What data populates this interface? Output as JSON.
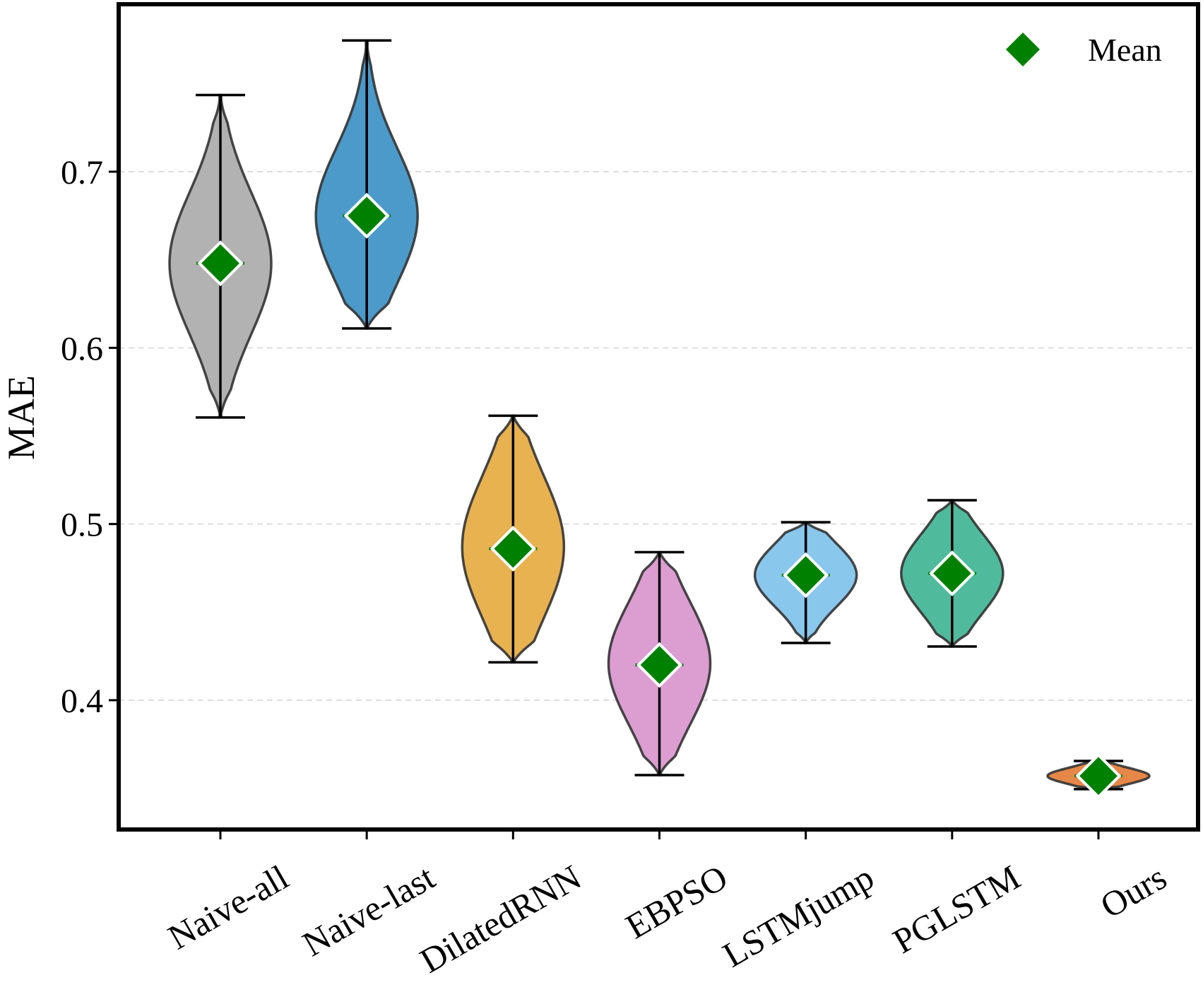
{
  "chart_data": {
    "type": "violin",
    "title": "",
    "xlabel": "",
    "ylabel": "MAE",
    "ylim": [
      0.335,
      0.79
    ],
    "yticks": [
      "0.4",
      "0.5",
      "0.6",
      "0.7"
    ],
    "ytick_values": [
      0.4,
      0.5,
      0.6,
      0.7
    ],
    "grid": "horizontal dashed",
    "legend": {
      "label": "Mean",
      "marker": "green-diamond",
      "placement": "top-right"
    },
    "categories": [
      "Naive-all",
      "Naive-last",
      "DilatedRNN",
      "EBPSO",
      "LSTMjump",
      "PGLSTM",
      "Ours"
    ],
    "series": [
      {
        "name": "Naive-all",
        "color": "#b2b2b2",
        "min": 0.5605,
        "max": 0.7435,
        "mean": 0.648,
        "peak": 0.648,
        "spread": 0.036
      },
      {
        "name": "Naive-last",
        "color": "#4b9aca",
        "min": 0.611,
        "max": 0.7745,
        "mean": 0.675,
        "peak": 0.675,
        "spread": 0.034
      },
      {
        "name": "DilatedRNN",
        "color": "#e8b250",
        "min": 0.4215,
        "max": 0.5615,
        "mean": 0.486,
        "peak": 0.487,
        "spread": 0.036
      },
      {
        "name": "EBPSO",
        "color": "#dc9dd1",
        "min": 0.3575,
        "max": 0.484,
        "mean": 0.42,
        "peak": 0.421,
        "spread": 0.031
      },
      {
        "name": "LSTMjump",
        "color": "#8ac7ed",
        "min": 0.4325,
        "max": 0.501,
        "mean": 0.471,
        "peak": 0.471,
        "spread": 0.016
      },
      {
        "name": "PGLSTM",
        "color": "#4fbb9c",
        "min": 0.4305,
        "max": 0.5135,
        "mean": 0.472,
        "peak": 0.472,
        "spread": 0.02
      },
      {
        "name": "Ours",
        "color": "#e58748",
        "min": 0.3495,
        "max": 0.3655,
        "mean": 0.357,
        "peak": 0.357,
        "spread": 0.004
      }
    ]
  }
}
